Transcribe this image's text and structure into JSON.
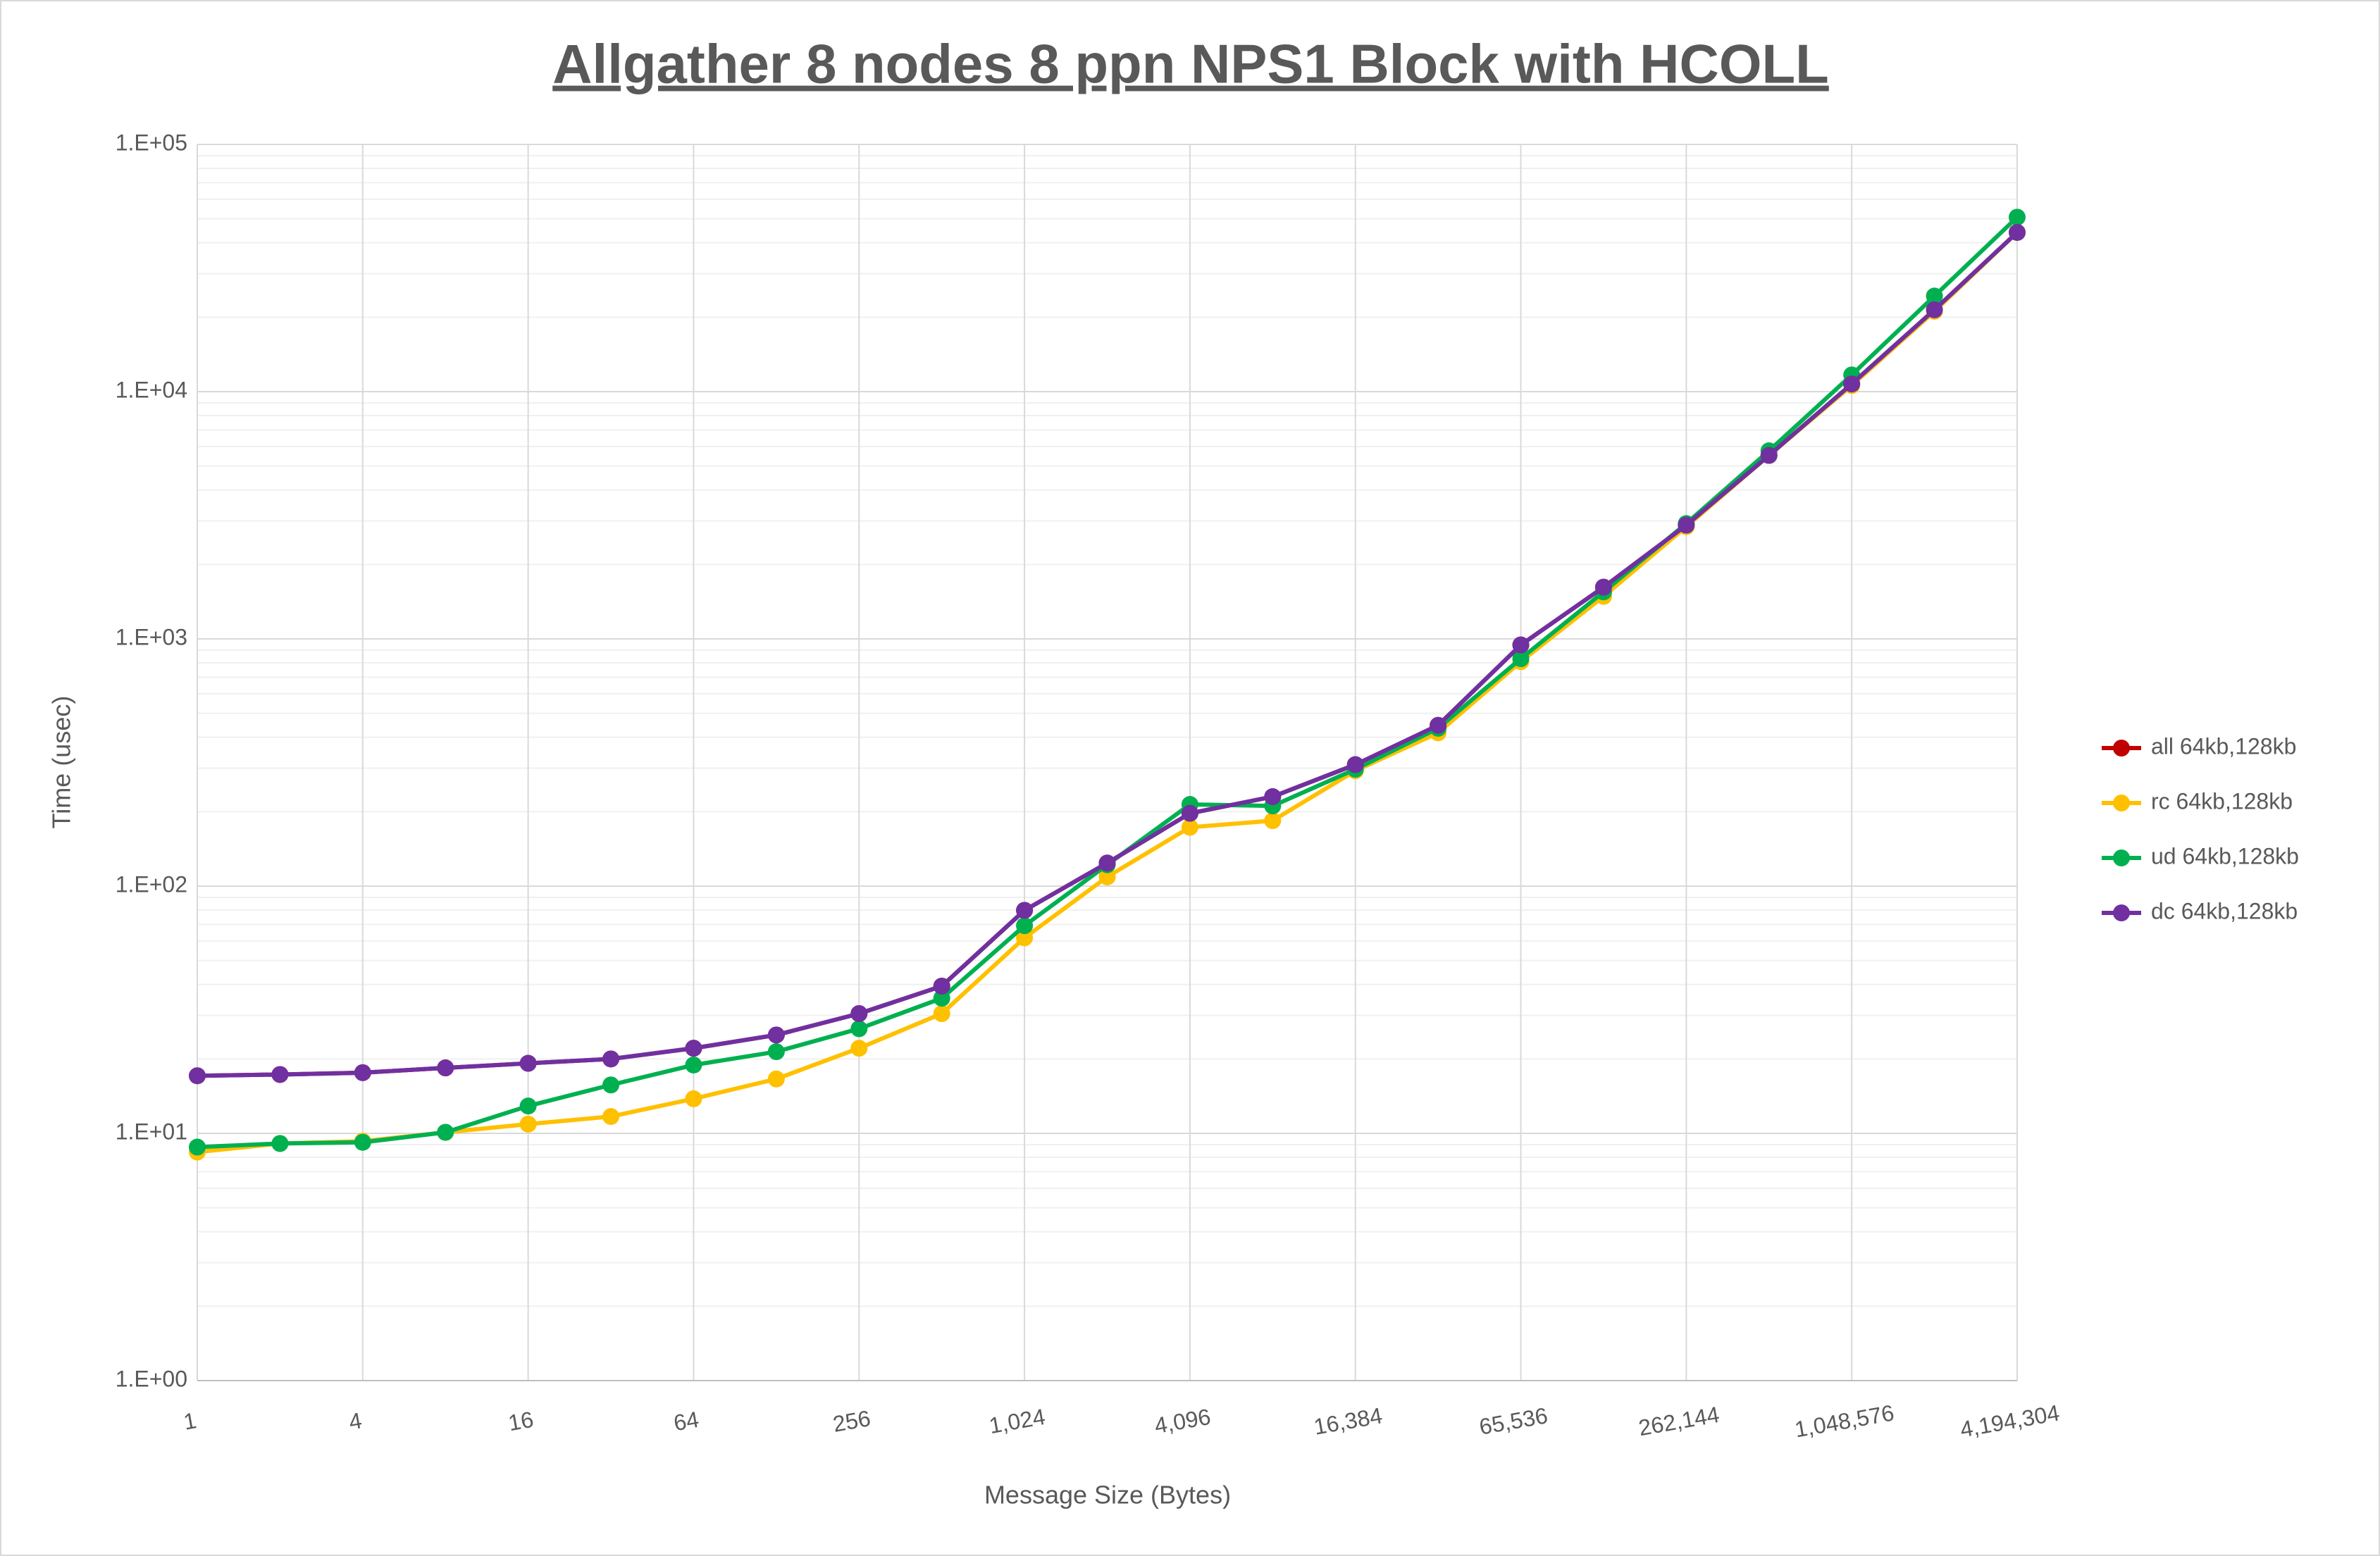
{
  "chart_data": {
    "type": "line",
    "title": "Allgather 8 nodes 8 ppn NPS1 Block with HCOLL",
    "x_label": "Message Size (Bytes)",
    "y_label": "Time (usec)",
    "x": [
      1,
      2,
      4,
      8,
      16,
      32,
      64,
      128,
      256,
      512,
      1024,
      2048,
      4096,
      8192,
      16384,
      32768,
      65536,
      131072,
      262144,
      524288,
      1048576,
      2097152,
      4194304
    ],
    "xlim": [
      1,
      4194304
    ],
    "xticks": [
      1,
      4,
      16,
      64,
      256,
      {
        "value": 1024,
        "label": "1,024"
      },
      {
        "value": 4096,
        "label": "4,096"
      },
      {
        "value": 16384,
        "label": "16,384"
      },
      {
        "value": 65536,
        "label": "65,536"
      },
      {
        "value": 262144,
        "label": "262,144"
      },
      {
        "value": 1048576,
        "label": "1,048,576"
      },
      {
        "value": 4194304,
        "label": "4,194,304"
      }
    ],
    "x_log_base": 2,
    "ylim": [
      1,
      100000
    ],
    "yticks": [
      {
        "value": 1,
        "label": "1.E+00"
      },
      {
        "value": 10,
        "label": "1.E+01"
      },
      {
        "value": 100,
        "label": "1.E+02"
      },
      {
        "value": 1000,
        "label": "1.E+03"
      },
      {
        "value": 10000,
        "label": "1.E+04"
      },
      {
        "value": 100000,
        "label": "1.E+05"
      }
    ],
    "y_log": true,
    "grid": true,
    "minor_grid": true,
    "legend": "right",
    "series": [
      {
        "name": "all 64kb,128kb",
        "color": "#c00000",
        "values": [
          17.1,
          17.3,
          17.6,
          18.4,
          19.2,
          20.0,
          22.1,
          25.0,
          30.5,
          39.4,
          79.8,
          124,
          197,
          230,
          310,
          447,
          945,
          1618,
          2884,
          5521,
          10740,
          21430,
          44050
        ]
      },
      {
        "name": "rc 64kb,128kb",
        "color": "#ffc000",
        "values": [
          8.4,
          9.1,
          9.3,
          10.1,
          10.9,
          11.7,
          13.8,
          16.6,
          22.1,
          30.5,
          61.8,
          109,
          173,
          184,
          293,
          417,
          809,
          1486,
          2844,
          5521,
          10590,
          21130,
          44050
        ]
      },
      {
        "name": "ud 64kb,128kb",
        "color": "#00b050",
        "values": [
          8.8,
          9.1,
          9.2,
          10.1,
          12.9,
          15.7,
          18.9,
          21.4,
          26.5,
          35.2,
          69.2,
          122,
          214,
          211,
          297,
          435,
          832,
          1549,
          2927,
          5764,
          11680,
          24360,
          50760
        ]
      },
      {
        "name": "dc 64kb,128kb",
        "color": "#7030a0",
        "values": [
          17.1,
          17.3,
          17.6,
          18.4,
          19.2,
          20.0,
          22.1,
          25.0,
          30.5,
          39.4,
          79.8,
          124,
          197,
          230,
          310,
          447,
          945,
          1618,
          2884,
          5521,
          10740,
          21430,
          44050
        ]
      }
    ]
  }
}
